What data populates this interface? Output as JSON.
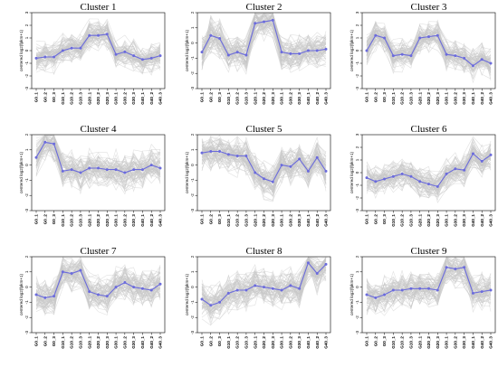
{
  "figure": {
    "background": "#ffffff",
    "band_color": "#c9c9c9",
    "mean_color": "#6b6bdc"
  },
  "chart_data": [
    {
      "type": "line",
      "title": "Cluster 1",
      "ylabel": "centered log2(fpkm+1)",
      "x": [
        "G0_1",
        "G0_2",
        "G0_3",
        "G10_1",
        "G10_2",
        "G10_3",
        "G20_1",
        "G20_2",
        "G20_3",
        "G30_1",
        "G30_2",
        "G30_3",
        "G40_1",
        "G40_2",
        "G40_3"
      ],
      "ylim": [
        -3,
        3
      ],
      "yticks": [
        -3,
        -2,
        -1,
        0,
        1,
        2,
        3
      ],
      "series": [
        {
          "values": [
            -0.6,
            -0.5,
            -0.5,
            0.0,
            0.2,
            0.2,
            1.2,
            1.2,
            1.3,
            -0.3,
            -0.1,
            -0.4,
            -0.7,
            -0.6,
            -0.4
          ]
        }
      ]
    },
    {
      "type": "line",
      "title": "Cluster 2",
      "ylabel": "centered log2(fpkm+1)",
      "x": [
        "G0_1",
        "G0_2",
        "G0_3",
        "G10_1",
        "G10_2",
        "G10_3",
        "G20_1",
        "G20_2",
        "G20_3",
        "G30_1",
        "G30_2",
        "G30_3",
        "G40_1",
        "G40_2",
        "G40_3"
      ],
      "ylim": [
        -3,
        2
      ],
      "yticks": [
        -3,
        -2,
        -1,
        0,
        1,
        2
      ],
      "series": [
        {
          "values": [
            -0.6,
            0.5,
            0.3,
            -0.8,
            -0.6,
            -0.8,
            1.3,
            1.4,
            1.5,
            -0.6,
            -0.7,
            -0.7,
            -0.5,
            -0.5,
            -0.4
          ]
        }
      ]
    },
    {
      "type": "line",
      "title": "Cluster 3",
      "ylabel": "centered log2(fpkm+1)",
      "x": [
        "G0_1",
        "G0_2",
        "G0_3",
        "G10_1",
        "G10_2",
        "G10_3",
        "G20_1",
        "G20_2",
        "G20_3",
        "G30_1",
        "G30_2",
        "G30_3",
        "G40_1",
        "G40_2",
        "G40_3"
      ],
      "ylim": [
        -3,
        3
      ],
      "yticks": [
        -3,
        -2,
        -1,
        0,
        1,
        2,
        3
      ],
      "series": [
        {
          "values": [
            0.0,
            1.2,
            1.0,
            -0.4,
            -0.3,
            -0.4,
            1.0,
            1.1,
            1.2,
            -0.3,
            -0.4,
            -0.6,
            -1.2,
            -0.7,
            -1.0
          ]
        }
      ]
    },
    {
      "type": "line",
      "title": "Cluster 4",
      "ylabel": "centered log2(fpkm+1)",
      "x": [
        "G0_1",
        "G0_2",
        "G0_3",
        "G10_1",
        "G10_2",
        "G10_3",
        "G20_1",
        "G20_2",
        "G20_3",
        "G30_1",
        "G30_2",
        "G30_3",
        "G40_1",
        "G40_2",
        "G40_3"
      ],
      "ylim": [
        -3,
        2
      ],
      "yticks": [
        -3,
        -2,
        -1,
        0,
        1,
        2
      ],
      "series": [
        {
          "values": [
            0.5,
            1.5,
            1.4,
            -0.4,
            -0.3,
            -0.5,
            -0.2,
            -0.2,
            -0.3,
            -0.3,
            -0.5,
            -0.3,
            -0.3,
            0.0,
            -0.2
          ]
        }
      ]
    },
    {
      "type": "line",
      "title": "Cluster 5",
      "ylabel": "centered log2(fpkm+1)",
      "x": [
        "G0_1",
        "G0_2",
        "G0_3",
        "G10_1",
        "G10_2",
        "G10_3",
        "G20_1",
        "G20_2",
        "G20_3",
        "G30_1",
        "G30_2",
        "G30_3",
        "G40_1",
        "G40_2",
        "G40_3"
      ],
      "ylim": [
        -3,
        2
      ],
      "yticks": [
        -3,
        -2,
        -1,
        0,
        1,
        2
      ],
      "series": [
        {
          "values": [
            0.8,
            0.9,
            0.9,
            0.7,
            0.6,
            0.6,
            -0.5,
            -0.9,
            -1.1,
            0.0,
            -0.1,
            0.4,
            -0.4,
            0.5,
            -0.4
          ]
        }
      ]
    },
    {
      "type": "line",
      "title": "Cluster 6",
      "ylabel": "centered log2(fpkm+1)",
      "x": [
        "G0_1",
        "G0_2",
        "G0_3",
        "G10_1",
        "G10_2",
        "G10_3",
        "G20_1",
        "G20_2",
        "G20_3",
        "G30_1",
        "G30_2",
        "G30_3",
        "G40_1",
        "G40_2",
        "G40_3"
      ],
      "ylim": [
        -3,
        3
      ],
      "yticks": [
        -3,
        -2,
        -1,
        0,
        1,
        2,
        3
      ],
      "series": [
        {
          "values": [
            -0.4,
            -0.7,
            -0.5,
            -0.3,
            -0.1,
            -0.3,
            -0.7,
            -0.9,
            -1.1,
            -0.1,
            0.3,
            0.2,
            1.5,
            0.9,
            1.4
          ]
        }
      ]
    },
    {
      "type": "line",
      "title": "Cluster 7",
      "ylabel": "centered log2(fpkm+1)",
      "x": [
        "G0_1",
        "G0_2",
        "G0_3",
        "G10_1",
        "G10_2",
        "G10_3",
        "G20_1",
        "G20_2",
        "G20_3",
        "G30_1",
        "G30_2",
        "G30_3",
        "G40_1",
        "G40_2",
        "G40_3"
      ],
      "ylim": [
        -3,
        2
      ],
      "yticks": [
        -3,
        -2,
        -1,
        0,
        1,
        2
      ],
      "series": [
        {
          "values": [
            -0.5,
            -0.7,
            -0.6,
            1.0,
            0.9,
            1.1,
            -0.3,
            -0.5,
            -0.6,
            0.0,
            0.3,
            0.0,
            -0.1,
            -0.2,
            0.2
          ]
        }
      ]
    },
    {
      "type": "line",
      "title": "Cluster 8",
      "ylabel": "centered log2(fpkm+1)",
      "x": [
        "G0_1",
        "G0_2",
        "G0_3",
        "G10_1",
        "G10_2",
        "G10_3",
        "G20_1",
        "G20_2",
        "G20_3",
        "G30_1",
        "G30_2",
        "G30_3",
        "G40_1",
        "G40_2",
        "G40_3"
      ],
      "ylim": [
        -3,
        2
      ],
      "yticks": [
        -3,
        -2,
        -1,
        0,
        1,
        2
      ],
      "series": [
        {
          "values": [
            -0.8,
            -1.2,
            -1.0,
            -0.4,
            -0.2,
            -0.2,
            0.1,
            0.0,
            -0.1,
            -0.2,
            0.1,
            -0.1,
            1.6,
            0.9,
            1.5
          ]
        }
      ]
    },
    {
      "type": "line",
      "title": "Cluster 9",
      "ylabel": "centered log2(fpkm+1)",
      "x": [
        "G0_1",
        "G0_2",
        "G0_3",
        "G10_1",
        "G10_2",
        "G10_3",
        "G20_1",
        "G20_2",
        "G20_3",
        "G30_1",
        "G30_2",
        "G30_3",
        "G40_1",
        "G40_2",
        "G40_3"
      ],
      "ylim": [
        -3,
        2
      ],
      "yticks": [
        -3,
        -2,
        -1,
        0,
        1,
        2
      ],
      "series": [
        {
          "values": [
            -0.5,
            -0.7,
            -0.5,
            -0.2,
            -0.2,
            -0.1,
            -0.1,
            -0.1,
            -0.2,
            1.3,
            1.2,
            1.3,
            -0.4,
            -0.3,
            -0.2
          ]
        }
      ]
    }
  ]
}
